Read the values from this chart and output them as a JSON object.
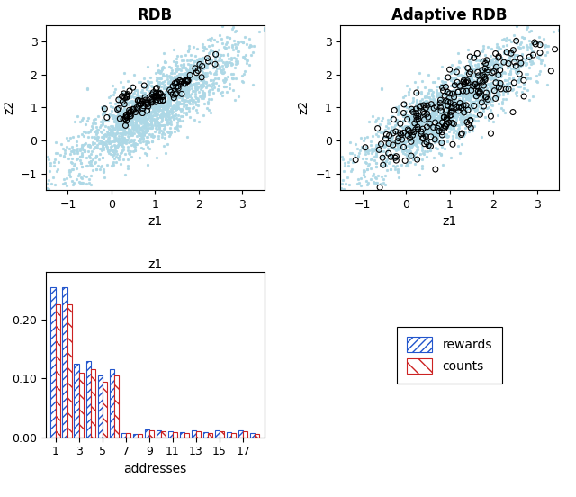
{
  "title_left": "RDB",
  "title_right": "Adaptive RDB",
  "scatter_xlabel": "z1",
  "scatter_ylabel": "z2",
  "bar_xlabel": "addresses",
  "bar_title": "z1",
  "scatter_xlim": [
    -1.5,
    3.5
  ],
  "scatter_ylim": [
    -1.5,
    3.5
  ],
  "scatter_xticks": [
    -1,
    0,
    1,
    2,
    3
  ],
  "scatter_yticks": [
    -1,
    0,
    1,
    2,
    3
  ],
  "bg_point_color": "#ADD8E6",
  "fg_point_color": "#000000",
  "bar_addresses": [
    1,
    2,
    3,
    4,
    5,
    6,
    7,
    8,
    9,
    10,
    11,
    12,
    13,
    14,
    15,
    16,
    17,
    18
  ],
  "bar_rewards": [
    0.255,
    0.255,
    0.125,
    0.13,
    0.105,
    0.115,
    0.008,
    0.005,
    0.013,
    0.012,
    0.01,
    0.009,
    0.012,
    0.009,
    0.012,
    0.009,
    0.012,
    0.007
  ],
  "bar_counts": [
    0.225,
    0.225,
    0.11,
    0.115,
    0.095,
    0.105,
    0.007,
    0.005,
    0.012,
    0.011,
    0.009,
    0.008,
    0.011,
    0.008,
    0.011,
    0.008,
    0.011,
    0.006
  ],
  "bar_xticks": [
    1,
    3,
    5,
    7,
    9,
    11,
    13,
    15,
    17
  ],
  "bar_yticks": [
    0.0,
    0.1,
    0.2
  ],
  "bar_ylim": [
    0,
    0.28
  ],
  "rewards_color": "#2255CC",
  "counts_color": "#CC2222",
  "legend_labels": [
    "rewards",
    "counts"
  ]
}
